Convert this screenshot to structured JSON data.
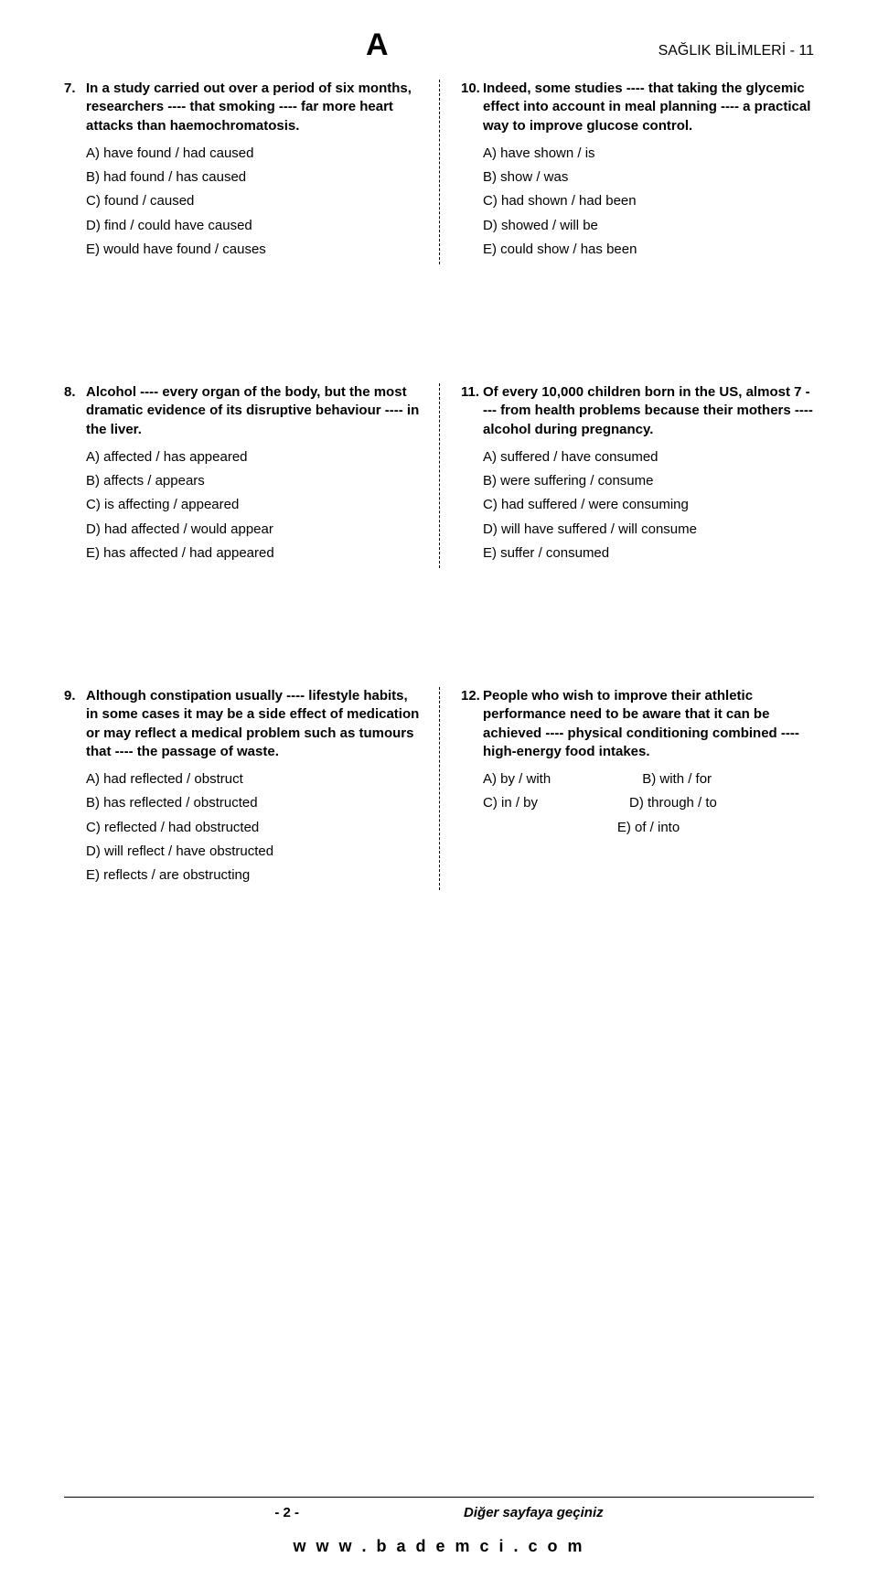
{
  "header": {
    "letter": "A",
    "subject": "SAĞLIK BİLİMLERİ - 11"
  },
  "rows": [
    {
      "left": {
        "num": "7.",
        "stem": "In a study carried out over a period of six months, researchers ---- that smoking ---- far more heart attacks than haemochromatosis.",
        "opts": [
          "A) have found / had caused",
          "B) had found / has caused",
          "C) found / caused",
          "D) find / could have caused",
          "E) would have found / causes"
        ]
      },
      "right": {
        "num": "10.",
        "stem": "Indeed, some studies ---- that taking the glycemic effect into account in meal planning ---- a practical way to improve glucose control.",
        "opts": [
          "A) have shown / is",
          "B) show / was",
          "C) had shown / had been",
          "D) showed / will be",
          "E) could show / has been"
        ]
      }
    },
    {
      "left": {
        "num": "8.",
        "stem": "Alcohol ---- every organ of the body, but the most dramatic evidence of its disruptive behaviour ---- in the liver.",
        "opts": [
          "A) affected / has appeared",
          "B) affects / appears",
          "C) is affecting / appeared",
          "D) had affected / would appear",
          "E) has affected / had appeared"
        ]
      },
      "right": {
        "num": "11.",
        "stem": "Of every 10,000 children born in the US, almost 7 ---- from health problems because their mothers ---- alcohol during pregnancy.",
        "opts": [
          "A) suffered / have consumed",
          "B) were suffering / consume",
          "C) had suffered / were consuming",
          "D) will have suffered / will consume",
          "E) suffer / consumed"
        ]
      }
    },
    {
      "left": {
        "num": "9.",
        "stem": "Although constipation usually ---- lifestyle habits, in some cases it may be a side effect of medication or may reflect a medical problem such as tumours that ---- the passage of waste.",
        "opts": [
          "A) had reflected / obstruct",
          "B) has reflected / obstructed",
          "C) reflected / had obstructed",
          "D) will reflect / have obstructed",
          "E) reflects / are obstructing"
        ]
      },
      "right": {
        "num": "12.",
        "stem": "People who wish to improve their athletic performance need to be aware that it can be achieved ---- physical conditioning combined ---- high-energy food intakes.",
        "inline": [
          [
            "A) by / with",
            "B) with / for"
          ],
          [
            "C) in / by",
            "D) through / to"
          ]
        ],
        "center": "E) of / into"
      }
    }
  ],
  "footer": {
    "pageNum": "- 2 -",
    "turn": "Diğer sayfaya geçiniz",
    "url": "w w w . b a d e m c i . c o m"
  }
}
